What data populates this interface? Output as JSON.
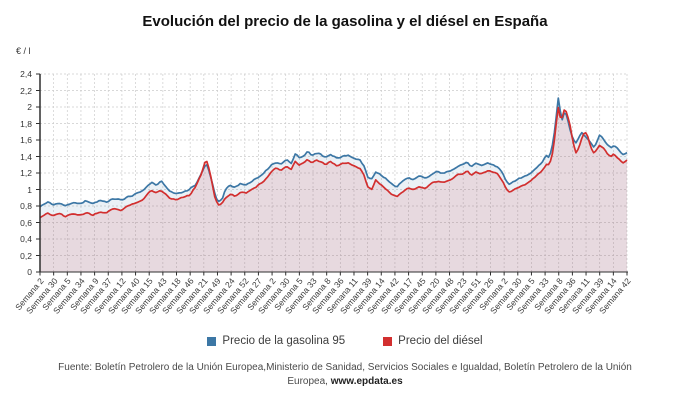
{
  "chart": {
    "title": "Evolución del precio de la gasolina y el diésel en España",
    "y_unit": "€ / l",
    "source_line1": "Fuente: Boletín Petrolero de la Unión Europea,Ministerio de Sanidad, Servicios Sociales e Igualdad, Boletín Petrolero de la Unión",
    "source_line2_prefix": "Europea, ",
    "source_line2_link": "www.epdata.es"
  },
  "legend": {
    "items": [
      {
        "label": "Precio de la gasolina 95",
        "color": "#3c77a5"
      },
      {
        "label": "Precio del diésel",
        "color": "#d22f2f"
      }
    ]
  },
  "chart_data": {
    "type": "line",
    "title": "Evolución del precio de la gasolina y el diésel en España",
    "xlabel": "",
    "ylabel": "€ / l",
    "ylim": [
      0,
      2.4
    ],
    "grid": "dashed",
    "legend_position": "bottom",
    "y_ticks": [
      "0",
      "0,2",
      "0,4",
      "0,6",
      "0,8",
      "1",
      "1,2",
      "1,4",
      "1,6",
      "1,8",
      "2",
      "2,2",
      "2,4"
    ],
    "x_tick_labels": [
      "Semana 2",
      "Semana 30",
      "Semana 5",
      "Semana 34",
      "Semana 9",
      "Semana 37",
      "Semana 12",
      "Semana 40",
      "Semana 15",
      "Semana 43",
      "Semana 18",
      "Semana 46",
      "Semana 21",
      "Semana 49",
      "Semana 24",
      "Semana 52",
      "Semana 27",
      "Semana 2",
      "Semana 30",
      "Semana 5",
      "Semana 33",
      "Semana 8",
      "Semana 36",
      "Semana 11",
      "Semana 39",
      "Semana 14",
      "Semana 42",
      "Semana 17",
      "Semana 45",
      "Semana 20",
      "Semana 48",
      "Semana 23",
      "Semana 51",
      "Semana 26",
      "Semana 2",
      "Semana 30",
      "Semana 5",
      "Semana 33",
      "Semana 8",
      "Semana 36",
      "Semana 11",
      "Semana 39",
      "Semana 14",
      "Semana 42"
    ],
    "series": [
      {
        "name": "Precio de la gasolina 95",
        "color": "#3c77a5",
        "area": "rgba(60,119,168,0.10)"
      },
      {
        "name": "Precio del diésel",
        "color": "#d22f2f",
        "area": "rgba(205,60,70,0.13)"
      }
    ],
    "points_format": [
      "t_normalized",
      "gasolina_95_eur_l",
      "diesel_eur_l"
    ],
    "points": [
      [
        0.0,
        0.79,
        0.67
      ],
      [
        0.013,
        0.85,
        0.71
      ],
      [
        0.022,
        0.81,
        0.68
      ],
      [
        0.032,
        0.84,
        0.71
      ],
      [
        0.043,
        0.8,
        0.67
      ],
      [
        0.055,
        0.84,
        0.7
      ],
      [
        0.066,
        0.82,
        0.69
      ],
      [
        0.078,
        0.86,
        0.72
      ],
      [
        0.09,
        0.83,
        0.69
      ],
      [
        0.102,
        0.87,
        0.73
      ],
      [
        0.114,
        0.85,
        0.72
      ],
      [
        0.126,
        0.89,
        0.77
      ],
      [
        0.138,
        0.87,
        0.75
      ],
      [
        0.15,
        0.91,
        0.8
      ],
      [
        0.163,
        0.94,
        0.83
      ],
      [
        0.175,
        0.99,
        0.88
      ],
      [
        0.183,
        1.04,
        0.94
      ],
      [
        0.19,
        1.09,
        0.99
      ],
      [
        0.198,
        1.05,
        0.95
      ],
      [
        0.206,
        1.1,
        0.99
      ],
      [
        0.214,
        1.04,
        0.94
      ],
      [
        0.222,
        0.97,
        0.89
      ],
      [
        0.232,
        0.95,
        0.87
      ],
      [
        0.243,
        0.97,
        0.9
      ],
      [
        0.255,
        1.0,
        0.93
      ],
      [
        0.265,
        1.06,
        1.03
      ],
      [
        0.274,
        1.18,
        1.18
      ],
      [
        0.281,
        1.28,
        1.32
      ],
      [
        0.285,
        1.3,
        1.34
      ],
      [
        0.291,
        1.15,
        1.15
      ],
      [
        0.298,
        0.95,
        0.9
      ],
      [
        0.303,
        0.85,
        0.81
      ],
      [
        0.31,
        0.87,
        0.83
      ],
      [
        0.316,
        1.0,
        0.9
      ],
      [
        0.323,
        1.05,
        0.94
      ],
      [
        0.331,
        1.03,
        0.92
      ],
      [
        0.341,
        1.07,
        0.96
      ],
      [
        0.351,
        1.05,
        0.95
      ],
      [
        0.361,
        1.1,
        1.0
      ],
      [
        0.371,
        1.14,
        1.05
      ],
      [
        0.381,
        1.19,
        1.1
      ],
      [
        0.392,
        1.28,
        1.2
      ],
      [
        0.402,
        1.33,
        1.26
      ],
      [
        0.41,
        1.3,
        1.23
      ],
      [
        0.42,
        1.36,
        1.28
      ],
      [
        0.428,
        1.32,
        1.25
      ],
      [
        0.435,
        1.44,
        1.35
      ],
      [
        0.442,
        1.38,
        1.3
      ],
      [
        0.45,
        1.42,
        1.33
      ],
      [
        0.456,
        1.47,
        1.37
      ],
      [
        0.463,
        1.41,
        1.32
      ],
      [
        0.47,
        1.45,
        1.36
      ],
      [
        0.478,
        1.43,
        1.34
      ],
      [
        0.487,
        1.39,
        1.3
      ],
      [
        0.495,
        1.43,
        1.34
      ],
      [
        0.505,
        1.38,
        1.29
      ],
      [
        0.515,
        1.4,
        1.31
      ],
      [
        0.525,
        1.42,
        1.32
      ],
      [
        0.535,
        1.38,
        1.28
      ],
      [
        0.545,
        1.36,
        1.26
      ],
      [
        0.552,
        1.28,
        1.17
      ],
      [
        0.558,
        1.15,
        1.04
      ],
      [
        0.565,
        1.12,
        1.0
      ],
      [
        0.572,
        1.22,
        1.11
      ],
      [
        0.58,
        1.18,
        1.06
      ],
      [
        0.59,
        1.12,
        1.0
      ],
      [
        0.6,
        1.07,
        0.94
      ],
      [
        0.608,
        1.03,
        0.9
      ],
      [
        0.617,
        1.1,
        0.97
      ],
      [
        0.627,
        1.14,
        1.02
      ],
      [
        0.637,
        1.12,
        1.0
      ],
      [
        0.647,
        1.16,
        1.04
      ],
      [
        0.657,
        1.13,
        1.01
      ],
      [
        0.667,
        1.18,
        1.07
      ],
      [
        0.678,
        1.22,
        1.11
      ],
      [
        0.688,
        1.19,
        1.08
      ],
      [
        0.698,
        1.23,
        1.12
      ],
      [
        0.708,
        1.27,
        1.16
      ],
      [
        0.718,
        1.3,
        1.19
      ],
      [
        0.728,
        1.33,
        1.22
      ],
      [
        0.735,
        1.27,
        1.17
      ],
      [
        0.742,
        1.31,
        1.21
      ],
      [
        0.752,
        1.29,
        1.19
      ],
      [
        0.762,
        1.32,
        1.22
      ],
      [
        0.772,
        1.3,
        1.21
      ],
      [
        0.78,
        1.27,
        1.18
      ],
      [
        0.788,
        1.2,
        1.11
      ],
      [
        0.794,
        1.11,
        1.01
      ],
      [
        0.8,
        1.05,
        0.96
      ],
      [
        0.808,
        1.1,
        1.0
      ],
      [
        0.816,
        1.13,
        1.03
      ],
      [
        0.825,
        1.16,
        1.06
      ],
      [
        0.835,
        1.2,
        1.1
      ],
      [
        0.845,
        1.26,
        1.16
      ],
      [
        0.852,
        1.31,
        1.21
      ],
      [
        0.858,
        1.36,
        1.26
      ],
      [
        0.862,
        1.41,
        1.31
      ],
      [
        0.866,
        1.39,
        1.29
      ],
      [
        0.87,
        1.45,
        1.35
      ],
      [
        0.874,
        1.57,
        1.48
      ],
      [
        0.878,
        1.78,
        1.7
      ],
      [
        0.881,
        2.0,
        1.92
      ],
      [
        0.8835,
        2.14,
        2.02
      ],
      [
        0.887,
        1.9,
        1.84
      ],
      [
        0.89,
        1.84,
        1.87
      ],
      [
        0.894,
        1.96,
        1.99
      ],
      [
        0.898,
        1.88,
        1.92
      ],
      [
        0.903,
        1.73,
        1.77
      ],
      [
        0.908,
        1.62,
        1.56
      ],
      [
        0.913,
        1.57,
        1.44
      ],
      [
        0.918,
        1.63,
        1.5
      ],
      [
        0.923,
        1.69,
        1.62
      ],
      [
        0.928,
        1.66,
        1.7
      ],
      [
        0.933,
        1.61,
        1.64
      ],
      [
        0.938,
        1.56,
        1.52
      ],
      [
        0.943,
        1.52,
        1.45
      ],
      [
        0.948,
        1.56,
        1.47
      ],
      [
        0.953,
        1.65,
        1.54
      ],
      [
        0.958,
        1.63,
        1.52
      ],
      [
        0.963,
        1.58,
        1.47
      ],
      [
        0.968,
        1.53,
        1.42
      ],
      [
        0.973,
        1.5,
        1.39
      ],
      [
        0.978,
        1.54,
        1.43
      ],
      [
        0.983,
        1.51,
        1.39
      ],
      [
        0.988,
        1.46,
        1.35
      ],
      [
        0.994,
        1.42,
        1.32
      ],
      [
        1.0,
        1.45,
        1.35
      ]
    ],
    "render": {
      "samples": 300,
      "jitter": 0.024
    }
  }
}
